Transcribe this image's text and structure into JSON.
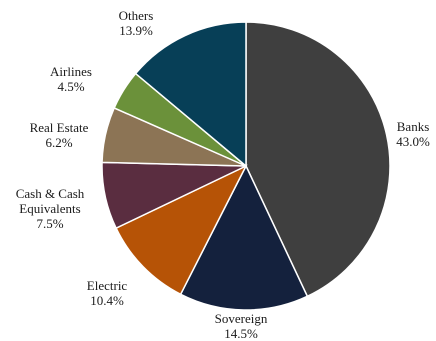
{
  "chart_data": {
    "type": "pie",
    "start_angle_deg": 0,
    "direction": "clockwise",
    "slices": [
      {
        "label_lines": [
          "Banks"
        ],
        "value": 43.0,
        "value_label": "43.0%",
        "color": "#3f3f3f",
        "id": "banks"
      },
      {
        "label_lines": [
          "Sovereign"
        ],
        "value": 14.5,
        "value_label": "14.5%",
        "color": "#14213d",
        "id": "sovereign"
      },
      {
        "label_lines": [
          "Electric"
        ],
        "value": 10.4,
        "value_label": "10.4%",
        "color": "#b65306",
        "id": "electric"
      },
      {
        "label_lines": [
          "Cash & Cash",
          "Equivalents"
        ],
        "value": 7.5,
        "value_label": "7.5%",
        "color": "#5a2d40",
        "id": "cash-equivalents"
      },
      {
        "label_lines": [
          "Real Estate"
        ],
        "value": 6.2,
        "value_label": "6.2%",
        "color": "#8c7455",
        "id": "real-estate"
      },
      {
        "label_lines": [
          "Airlines"
        ],
        "value": 4.5,
        "value_label": "4.5%",
        "color": "#6b913a",
        "id": "airlines"
      },
      {
        "label_lines": [
          "Others"
        ],
        "value": 13.9,
        "value_label": "13.9%",
        "color": "#073f57",
        "id": "others"
      }
    ]
  }
}
